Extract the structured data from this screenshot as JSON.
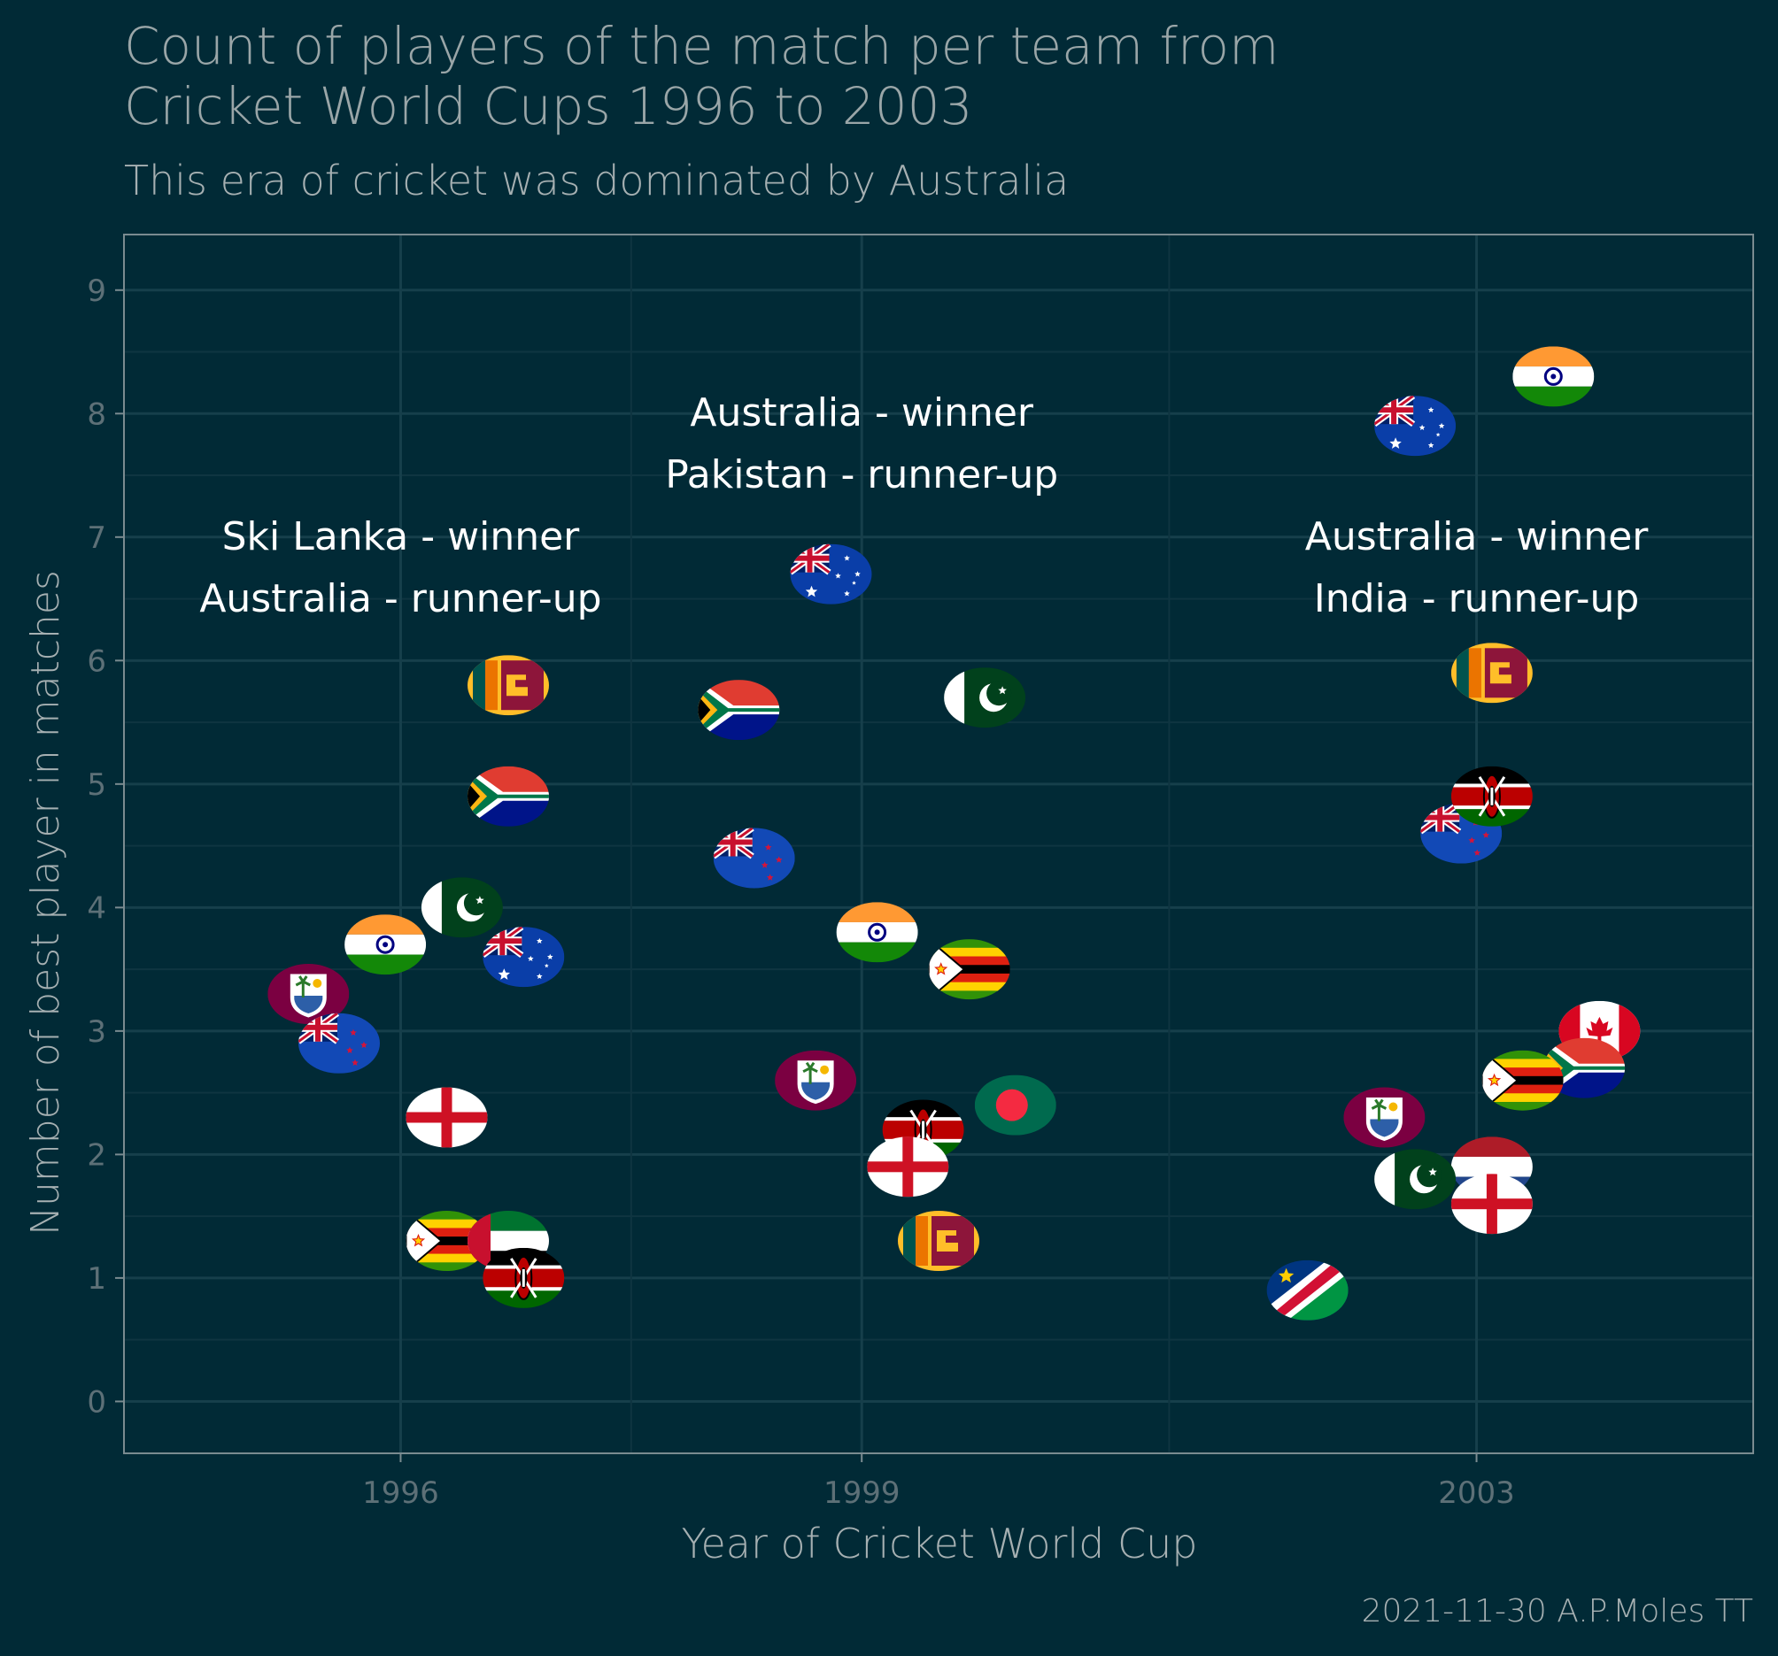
{
  "colors": {
    "background": "#012a36",
    "panel_border": "#7a8b90",
    "grid_major": "#163f4b",
    "grid_minor": "#0f3541",
    "title": "#9aa6a8",
    "subtitle": "#a6b0b2",
    "axis_title": "#a6b0b2",
    "tick_label": "#5d7077",
    "annotation": "#ffffff",
    "caption": "#a6b0b2"
  },
  "chart_data": {
    "type": "scatter",
    "title": "Count of players of the match per team from Cricket World Cups 1996 to 2003",
    "title_lines": [
      "Count of players of the match per team from",
      "Cricket World Cups 1996 to 2003"
    ],
    "subtitle": "This era of cricket was dominated by Australia",
    "xlabel": "Year of Cricket World Cup",
    "ylabel": "Number of best player in matches",
    "caption": "2021-11-30 A.P.Moles TT",
    "xlim": [
      1994.2,
      2004.8
    ],
    "ylim": [
      -0.42,
      9.45
    ],
    "x_ticks": [
      1996,
      1999,
      2003
    ],
    "y_ticks": [
      0,
      1,
      2,
      3,
      4,
      5,
      6,
      7,
      8,
      9
    ],
    "grid": true,
    "marker": "country flag",
    "annotations": [
      {
        "x": 1996,
        "y": 6.9,
        "lines": [
          "Ski Lanka - winner",
          "Australia - runner-up"
        ]
      },
      {
        "x": 1999,
        "y": 7.9,
        "lines": [
          "Australia - winner",
          "Pakistan - runner-up"
        ]
      },
      {
        "x": 2003,
        "y": 6.9,
        "lines": [
          "Australia - winner",
          "India - runner-up"
        ]
      }
    ],
    "series": [
      {
        "name": "1996",
        "points": [
          {
            "team": "Sri Lanka",
            "flag": "sri-lanka",
            "x": 1996.7,
            "y": 5.8
          },
          {
            "team": "South Africa",
            "flag": "south-africa",
            "x": 1996.7,
            "y": 4.9
          },
          {
            "team": "Pakistan",
            "flag": "pakistan",
            "x": 1996.4,
            "y": 4.0
          },
          {
            "team": "India",
            "flag": "india",
            "x": 1995.9,
            "y": 3.7
          },
          {
            "team": "Australia",
            "flag": "australia",
            "x": 1996.8,
            "y": 3.6
          },
          {
            "team": "West Indies",
            "flag": "west-indies",
            "x": 1995.4,
            "y": 3.3
          },
          {
            "team": "New Zealand",
            "flag": "new-zealand",
            "x": 1995.6,
            "y": 2.9
          },
          {
            "team": "England",
            "flag": "england",
            "x": 1996.3,
            "y": 2.3
          },
          {
            "team": "Zimbabwe",
            "flag": "zimbabwe",
            "x": 1996.3,
            "y": 1.3
          },
          {
            "team": "United Arab Emirates",
            "flag": "uae",
            "x": 1996.7,
            "y": 1.3
          },
          {
            "team": "Kenya",
            "flag": "kenya",
            "x": 1996.8,
            "y": 1.0
          }
        ]
      },
      {
        "name": "1999",
        "points": [
          {
            "team": "Australia",
            "flag": "australia",
            "x": 1998.8,
            "y": 6.7
          },
          {
            "team": "South Africa",
            "flag": "south-africa",
            "x": 1998.2,
            "y": 5.6
          },
          {
            "team": "Pakistan",
            "flag": "pakistan",
            "x": 1999.8,
            "y": 5.7
          },
          {
            "team": "New Zealand",
            "flag": "new-zealand",
            "x": 1998.3,
            "y": 4.4
          },
          {
            "team": "India",
            "flag": "india",
            "x": 1999.1,
            "y": 3.8
          },
          {
            "team": "Zimbabwe",
            "flag": "zimbabwe",
            "x": 1999.7,
            "y": 3.5
          },
          {
            "team": "West Indies",
            "flag": "west-indies",
            "x": 1998.7,
            "y": 2.6
          },
          {
            "team": "Bangladesh",
            "flag": "bangladesh",
            "x": 2000.0,
            "y": 2.4
          },
          {
            "team": "Kenya",
            "flag": "kenya",
            "x": 1999.4,
            "y": 2.2
          },
          {
            "team": "England",
            "flag": "england",
            "x": 1999.3,
            "y": 1.9
          },
          {
            "team": "Sri Lanka",
            "flag": "sri-lanka",
            "x": 1999.5,
            "y": 1.3
          }
        ]
      },
      {
        "name": "2003",
        "points": [
          {
            "team": "India",
            "flag": "india",
            "x": 2003.5,
            "y": 8.3
          },
          {
            "team": "Australia",
            "flag": "australia",
            "x": 2002.6,
            "y": 7.9
          },
          {
            "team": "Sri Lanka",
            "flag": "sri-lanka",
            "x": 2003.1,
            "y": 5.9
          },
          {
            "team": "New Zealand",
            "flag": "new-zealand",
            "x": 2002.9,
            "y": 4.6
          },
          {
            "team": "Kenya",
            "flag": "kenya",
            "x": 2003.1,
            "y": 4.9
          },
          {
            "team": "Canada",
            "flag": "canada",
            "x": 2003.8,
            "y": 3.0
          },
          {
            "team": "South Africa",
            "flag": "south-africa",
            "x": 2003.7,
            "y": 2.7
          },
          {
            "team": "Zimbabwe",
            "flag": "zimbabwe",
            "x": 2003.3,
            "y": 2.6
          },
          {
            "team": "West Indies",
            "flag": "west-indies",
            "x": 2002.4,
            "y": 2.3
          },
          {
            "team": "Netherlands",
            "flag": "netherlands",
            "x": 2003.1,
            "y": 1.9
          },
          {
            "team": "Pakistan",
            "flag": "pakistan",
            "x": 2002.6,
            "y": 1.8
          },
          {
            "team": "England",
            "flag": "england",
            "x": 2003.1,
            "y": 1.6
          },
          {
            "team": "Namibia",
            "flag": "namibia",
            "x": 2001.9,
            "y": 0.9
          }
        ]
      }
    ]
  }
}
